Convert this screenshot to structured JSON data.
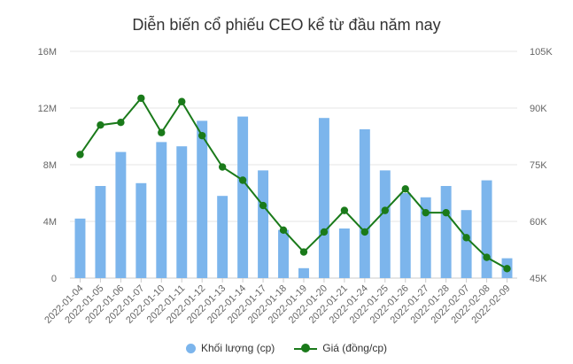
{
  "chart_data": {
    "type": "bar+line",
    "title": "Diễn biến cổ phiếu CEO kể từ đầu năm nay",
    "categories": [
      "2022-01-04",
      "2022-01-05",
      "2022-01-06",
      "2022-01-07",
      "2022-01-10",
      "2022-01-11",
      "2022-01-12",
      "2022-01-13",
      "2022-01-14",
      "2022-01-17",
      "2022-01-18",
      "2022-01-19",
      "2022-01-20",
      "2022-01-21",
      "2022-01-24",
      "2022-01-25",
      "2022-01-26",
      "2022-01-27",
      "2022-01-28",
      "2022-02-07",
      "2022-02-08",
      "2022-02-09"
    ],
    "series": [
      {
        "name": "Khối lượng (cp)",
        "type": "bar",
        "axis": "left",
        "color": "#7cb5ec",
        "values": [
          4200000,
          6500000,
          8900000,
          6700000,
          9600000,
          9300000,
          11100000,
          5800000,
          11400000,
          7600000,
          3400000,
          700000,
          11300000,
          3500000,
          10500000,
          7600000,
          6000000,
          5700000,
          6500000,
          4800000,
          6900000,
          1400000
        ]
      },
      {
        "name": "Giá (đồng/cp)",
        "type": "line",
        "axis": "right",
        "color": "#1a7a1a",
        "values": [
          77700,
          85500,
          86200,
          92600,
          83500,
          91700,
          82700,
          74400,
          70900,
          64200,
          57700,
          51900,
          57200,
          62900,
          57200,
          62900,
          68600,
          62300,
          62300,
          55700,
          50500,
          47500
        ]
      }
    ],
    "y_left": {
      "min": 0,
      "max": 16000000,
      "ticks": [
        "0",
        "4M",
        "8M",
        "12M",
        "16M"
      ]
    },
    "y_right": {
      "min": 45000,
      "max": 105000,
      "ticks": [
        "45K",
        "60K",
        "75K",
        "90K",
        "105K"
      ]
    },
    "grid": true,
    "legend_position": "bottom-center"
  }
}
